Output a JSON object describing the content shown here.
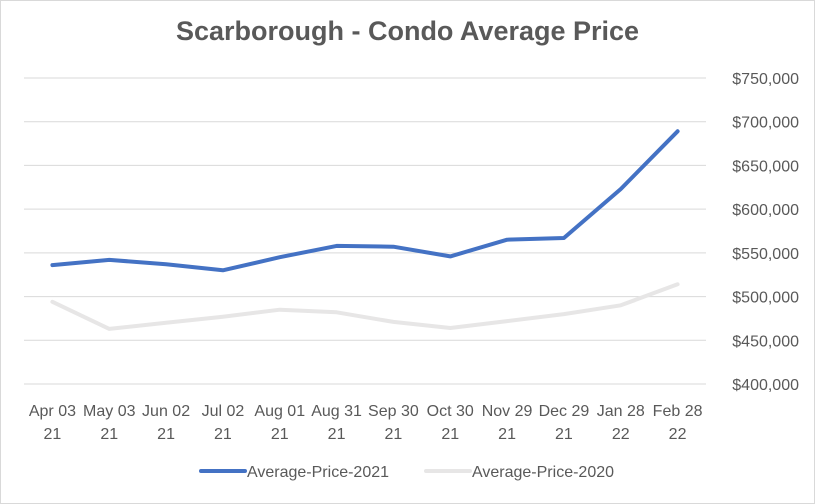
{
  "chart_data": {
    "type": "line",
    "title": "Scarborough - Condo Average Price",
    "xlabel": "",
    "ylabel": "",
    "categories": [
      [
        "Apr 03",
        "21"
      ],
      [
        "May 03",
        "21"
      ],
      [
        "Jun 02",
        "21"
      ],
      [
        "Jul 02",
        "21"
      ],
      [
        "Aug 01",
        "21"
      ],
      [
        "Aug 31",
        "21"
      ],
      [
        "Sep 30",
        "21"
      ],
      [
        "Oct 30",
        "21"
      ],
      [
        "Nov 29",
        "21"
      ],
      [
        "Dec 29",
        "21"
      ],
      [
        "Jan 28",
        "22"
      ],
      [
        "Feb 28",
        "22"
      ]
    ],
    "ylim": [
      400000,
      750000
    ],
    "yticks": [
      400000,
      450000,
      500000,
      550000,
      600000,
      650000,
      700000,
      750000
    ],
    "ytick_labels": [
      "$400,000",
      "$450,000",
      "$500,000",
      "$550,000",
      "$600,000",
      "$650,000",
      "$700,000",
      "$750,000"
    ],
    "y_axis_side": "right",
    "grid": true,
    "legend_position": "bottom",
    "series": [
      {
        "name": "Average-Price-2021",
        "color": "#4472c4",
        "values": [
          536000,
          542000,
          537000,
          530000,
          545000,
          558000,
          557000,
          546000,
          565000,
          567000,
          623000,
          689000
        ]
      },
      {
        "name": "Average-Price-2020",
        "color": "#e7e6e6",
        "values": [
          494000,
          463000,
          470000,
          477000,
          485000,
          482000,
          471000,
          464000,
          472000,
          480000,
          490000,
          514000
        ]
      }
    ]
  }
}
